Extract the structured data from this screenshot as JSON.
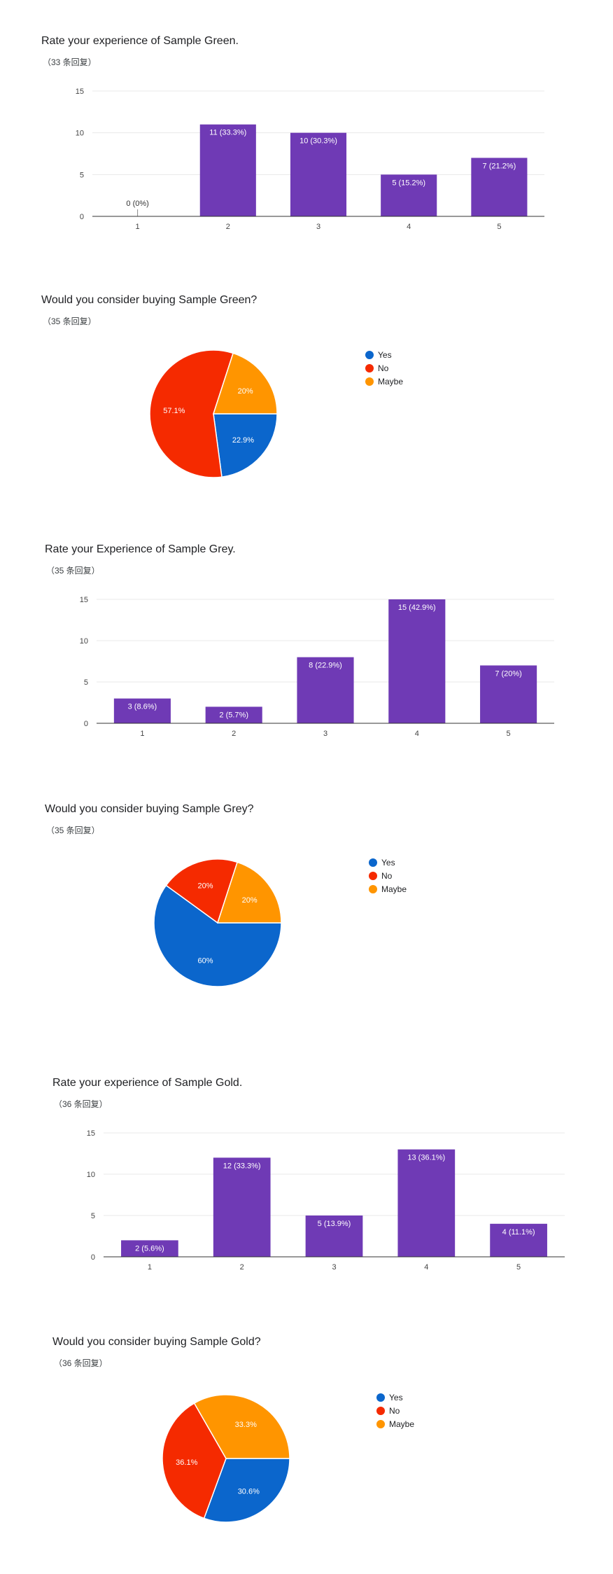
{
  "sections": [
    {
      "title": "Rate your experience of Sample Green.",
      "count": "（33 条回复）"
    },
    {
      "title": "Would you consider buying Sample Green?",
      "count": "（35 条回复）"
    },
    {
      "title": "Rate your Experience of Sample Grey.",
      "count": "（35 条回复）"
    },
    {
      "title": "Would you consider buying Sample Grey?",
      "count": "（35 条回复）"
    },
    {
      "title": "Rate your experience of Sample Gold.",
      "count": "（36 条回复）"
    },
    {
      "title": "Would you consider buying Sample Gold?",
      "count": "（36 条回复）"
    }
  ],
  "colors": {
    "bar": "#6f3ab5",
    "yes": "#0b66cc",
    "no": "#f52a00",
    "maybe": "#ff9500"
  },
  "legend": [
    "Yes",
    "No",
    "Maybe"
  ],
  "chart_data": [
    {
      "type": "bar",
      "categories": [
        "1",
        "2",
        "3",
        "4",
        "5"
      ],
      "values": [
        0,
        11,
        10,
        5,
        7
      ],
      "labels": [
        "0 (0%)",
        "11 (33.3%)",
        "10 (30.3%)",
        "5 (15.2%)",
        "7 (21.2%)"
      ],
      "yticks": [
        "0",
        "5",
        "10",
        "15"
      ],
      "ylim": [
        0,
        15
      ],
      "grid": true
    },
    {
      "type": "pie",
      "categories": [
        "Yes",
        "No",
        "Maybe"
      ],
      "values": [
        22.9,
        57.1,
        20
      ],
      "labels": [
        "22.9%",
        "57.1%",
        "20%"
      ],
      "legend_position": "right"
    },
    {
      "type": "bar",
      "categories": [
        "1",
        "2",
        "3",
        "4",
        "5"
      ],
      "values": [
        3,
        2,
        8,
        15,
        7
      ],
      "labels": [
        "3 (8.6%)",
        "2 (5.7%)",
        "8 (22.9%)",
        "15 (42.9%)",
        "7 (20%)"
      ],
      "yticks": [
        "0",
        "5",
        "10",
        "15"
      ],
      "ylim": [
        0,
        15
      ],
      "grid": true
    },
    {
      "type": "pie",
      "categories": [
        "Yes",
        "No",
        "Maybe"
      ],
      "values": [
        60,
        20,
        20
      ],
      "labels": [
        "60%",
        "20%",
        "20%"
      ],
      "legend_position": "right"
    },
    {
      "type": "bar",
      "categories": [
        "1",
        "2",
        "3",
        "4",
        "5"
      ],
      "values": [
        2,
        12,
        5,
        13,
        4
      ],
      "labels": [
        "2 (5.6%)",
        "12 (33.3%)",
        "5 (13.9%)",
        "13 (36.1%)",
        "4 (11.1%)"
      ],
      "yticks": [
        "0",
        "5",
        "10",
        "15"
      ],
      "ylim": [
        0,
        15
      ],
      "grid": true
    },
    {
      "type": "pie",
      "categories": [
        "Yes",
        "No",
        "Maybe"
      ],
      "values": [
        30.6,
        36.1,
        33.3
      ],
      "labels": [
        "30.6%",
        "36.1%",
        "33.3%"
      ],
      "legend_position": "right"
    }
  ]
}
